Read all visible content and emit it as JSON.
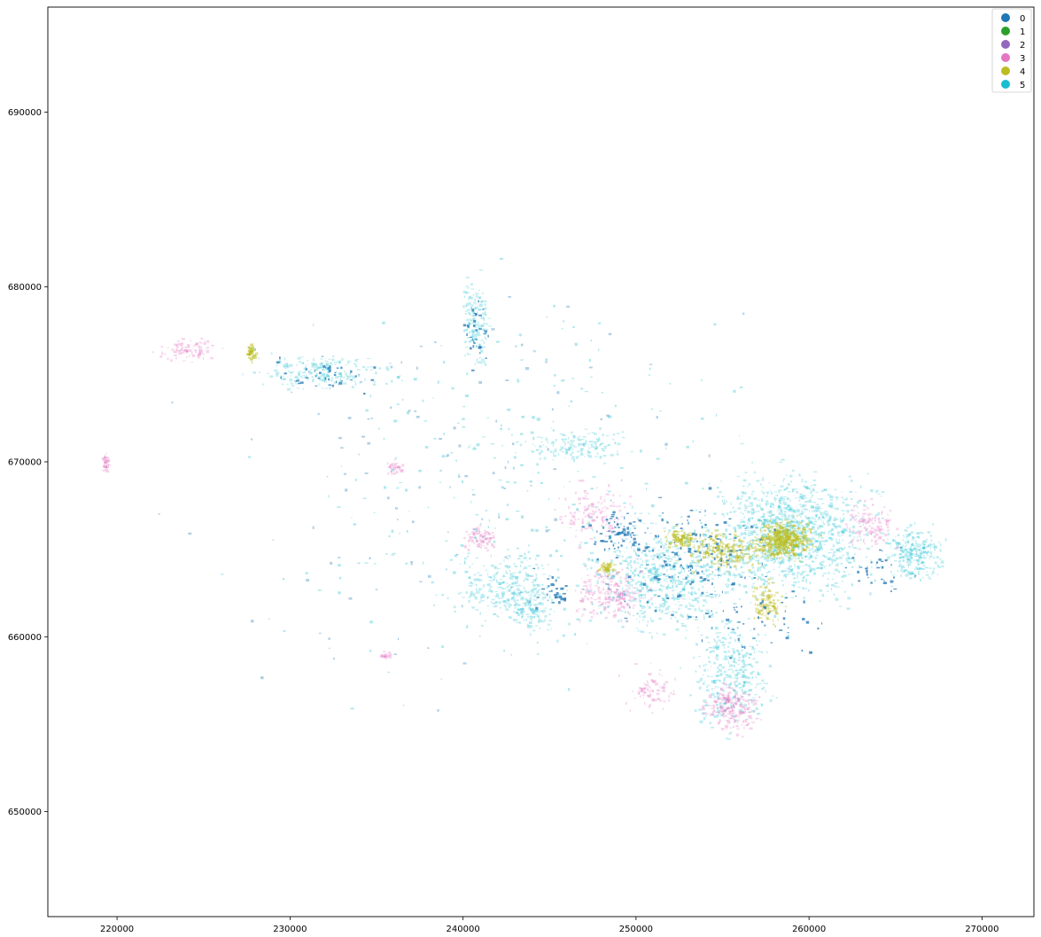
{
  "chart_data": {
    "type": "scatter",
    "title": "",
    "xlabel": "",
    "ylabel": "",
    "xlim": [
      216000,
      273000
    ],
    "ylim": [
      644000,
      696000
    ],
    "xticks": [
      220000,
      230000,
      240000,
      250000,
      260000,
      270000
    ],
    "yticks": [
      650000,
      660000,
      670000,
      680000,
      690000
    ],
    "xtick_labels": [
      "220000",
      "230000",
      "240000",
      "250000",
      "260000",
      "270000"
    ],
    "ytick_labels": [
      "650000",
      "660000",
      "670000",
      "680000",
      "690000"
    ],
    "grid": false,
    "legend_position": "top-right",
    "categories": [
      {
        "name": "0",
        "color": "#1f77b4"
      },
      {
        "name": "1",
        "color": "#2ca02c"
      },
      {
        "name": "2",
        "color": "#9467bd"
      },
      {
        "name": "3",
        "color": "#e377c2"
      },
      {
        "name": "4",
        "color": "#bcbd22"
      },
      {
        "name": "5",
        "color": "#17becf"
      }
    ],
    "clusters": [
      {
        "cat": "5",
        "x": 259000,
        "y": 665800,
        "sx": 4200,
        "sy": 3200,
        "n": 1200,
        "op": 0.28
      },
      {
        "cat": "5",
        "x": 251500,
        "y": 663500,
        "sx": 3800,
        "sy": 3000,
        "n": 650,
        "op": 0.28
      },
      {
        "cat": "5",
        "x": 255500,
        "y": 658000,
        "sx": 2200,
        "sy": 2800,
        "n": 350,
        "op": 0.28
      },
      {
        "cat": "5",
        "x": 266000,
        "y": 664800,
        "sx": 1400,
        "sy": 1300,
        "n": 260,
        "op": 0.28
      },
      {
        "cat": "5",
        "x": 242500,
        "y": 663000,
        "sx": 2600,
        "sy": 1800,
        "n": 280,
        "op": 0.26
      },
      {
        "cat": "5",
        "x": 232000,
        "y": 675200,
        "sx": 3500,
        "sy": 900,
        "n": 200,
        "op": 0.26
      },
      {
        "cat": "5",
        "x": 240700,
        "y": 678000,
        "sx": 700,
        "sy": 2200,
        "n": 160,
        "op": 0.26
      },
      {
        "cat": "5",
        "x": 246500,
        "y": 671000,
        "sx": 2600,
        "sy": 900,
        "n": 150,
        "op": 0.26
      },
      {
        "cat": "5",
        "x": 244000,
        "y": 661500,
        "sx": 1200,
        "sy": 1100,
        "n": 110,
        "op": 0.26
      },
      {
        "cat": "3",
        "x": 248500,
        "y": 662500,
        "sx": 1800,
        "sy": 1400,
        "n": 220,
        "op": 0.3
      },
      {
        "cat": "3",
        "x": 255600,
        "y": 656000,
        "sx": 1400,
        "sy": 1400,
        "n": 200,
        "op": 0.32
      },
      {
        "cat": "3",
        "x": 241000,
        "y": 665700,
        "sx": 900,
        "sy": 600,
        "n": 90,
        "op": 0.32
      },
      {
        "cat": "3",
        "x": 247500,
        "y": 667000,
        "sx": 1800,
        "sy": 1400,
        "n": 140,
        "op": 0.3
      },
      {
        "cat": "3",
        "x": 224000,
        "y": 676500,
        "sx": 1500,
        "sy": 700,
        "n": 90,
        "op": 0.3
      },
      {
        "cat": "3",
        "x": 219300,
        "y": 670000,
        "sx": 200,
        "sy": 500,
        "n": 40,
        "op": 0.32
      },
      {
        "cat": "3",
        "x": 263500,
        "y": 666500,
        "sx": 1400,
        "sy": 1300,
        "n": 120,
        "op": 0.3
      },
      {
        "cat": "3",
        "x": 236000,
        "y": 669700,
        "sx": 500,
        "sy": 400,
        "n": 40,
        "op": 0.3
      },
      {
        "cat": "3",
        "x": 235500,
        "y": 659000,
        "sx": 300,
        "sy": 250,
        "n": 20,
        "op": 0.3
      },
      {
        "cat": "3",
        "x": 250800,
        "y": 657000,
        "sx": 1200,
        "sy": 1200,
        "n": 80,
        "op": 0.3
      },
      {
        "cat": "4",
        "x": 258500,
        "y": 665600,
        "sx": 1500,
        "sy": 900,
        "n": 480,
        "op": 0.5
      },
      {
        "cat": "4",
        "x": 255000,
        "y": 665000,
        "sx": 2200,
        "sy": 1000,
        "n": 260,
        "op": 0.42
      },
      {
        "cat": "4",
        "x": 257500,
        "y": 662000,
        "sx": 800,
        "sy": 1100,
        "n": 120,
        "op": 0.42
      },
      {
        "cat": "4",
        "x": 252500,
        "y": 665700,
        "sx": 800,
        "sy": 500,
        "n": 90,
        "op": 0.5
      },
      {
        "cat": "4",
        "x": 227700,
        "y": 676300,
        "sx": 300,
        "sy": 450,
        "n": 45,
        "op": 0.55
      },
      {
        "cat": "4",
        "x": 248300,
        "y": 664000,
        "sx": 500,
        "sy": 300,
        "n": 45,
        "op": 0.45
      },
      {
        "cat": "0",
        "x": 253000,
        "y": 664500,
        "sx": 4000,
        "sy": 3000,
        "n": 150,
        "op": 0.75
      },
      {
        "cat": "0",
        "x": 249000,
        "y": 666000,
        "sx": 1600,
        "sy": 1200,
        "n": 60,
        "op": 0.75
      },
      {
        "cat": "0",
        "x": 232000,
        "y": 675000,
        "sx": 3200,
        "sy": 900,
        "n": 40,
        "op": 0.75
      },
      {
        "cat": "0",
        "x": 240700,
        "y": 677500,
        "sx": 600,
        "sy": 2200,
        "n": 30,
        "op": 0.75
      },
      {
        "cat": "0",
        "x": 257000,
        "y": 661000,
        "sx": 3000,
        "sy": 2000,
        "n": 50,
        "op": 0.75
      },
      {
        "cat": "0",
        "x": 264000,
        "y": 664000,
        "sx": 2000,
        "sy": 1500,
        "n": 30,
        "op": 0.75
      },
      {
        "cat": "0",
        "x": 245000,
        "y": 662800,
        "sx": 1500,
        "sy": 1000,
        "n": 30,
        "op": 0.75
      },
      {
        "cat": "5",
        "x": 244000,
        "y": 668000,
        "sx": 13000,
        "sy": 10000,
        "n": 320,
        "op": 0.35
      },
      {
        "cat": "0",
        "x": 240000,
        "y": 669000,
        "sx": 14000,
        "sy": 12000,
        "n": 120,
        "op": 0.35
      }
    ]
  }
}
